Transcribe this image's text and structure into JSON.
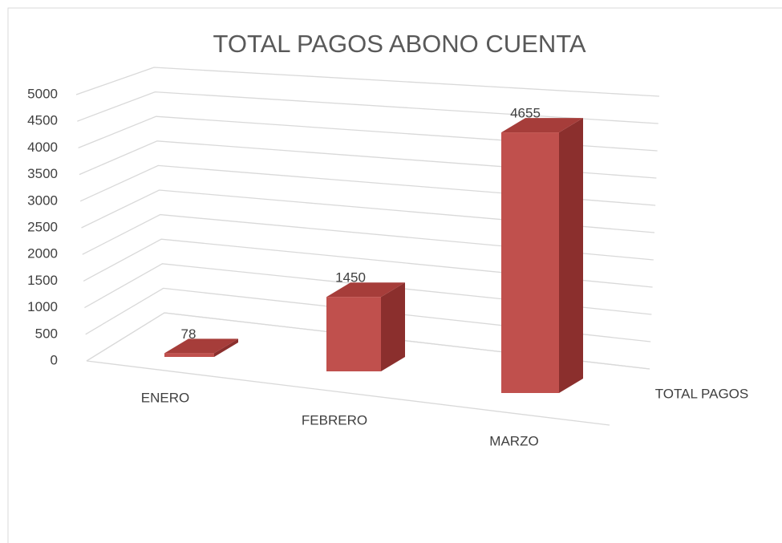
{
  "chart_data": {
    "type": "bar3d",
    "title": "TOTAL PAGOS ABONO CUENTA",
    "categories": [
      "ENERO",
      "FEBRERO",
      "MARZO"
    ],
    "series": [
      {
        "name": "TOTAL PAGOS",
        "color": "#c0504d",
        "values": [
          78,
          1450,
          4655
        ]
      }
    ],
    "ylim": [
      0,
      5000
    ],
    "yticks": [
      0,
      500,
      1000,
      1500,
      2000,
      2500,
      3000,
      3500,
      4000,
      4500,
      5000
    ],
    "grid": true
  }
}
